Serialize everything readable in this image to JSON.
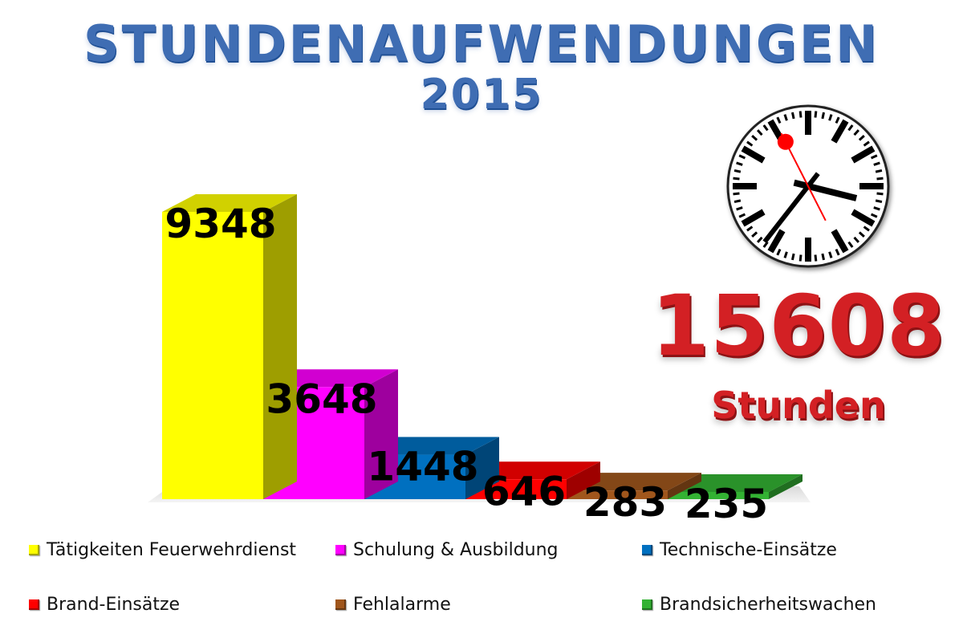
{
  "title": {
    "line1": "STUNDENAUFWENDUNGEN",
    "line2": "2015"
  },
  "total": {
    "value": "15608",
    "unit": "Stunden"
  },
  "chart_data": {
    "type": "bar",
    "categories": [
      "Tätigkeiten Feuerwehrdienst",
      "Schulung & Ausbildung",
      "Technische-Einsätze",
      "Brand-Einsätze",
      "Fehlalarme",
      "Brandsicherheitswachen"
    ],
    "values": [
      9348,
      3648,
      1448,
      646,
      283,
      235
    ],
    "colors": [
      "#ffff00",
      "#ff00ff",
      "#0070c0",
      "#ff0000",
      "#a0561c",
      "#33b233"
    ],
    "title": "STUNDENAUFWENDUNGEN 2015",
    "legend": "bottom",
    "grid": false
  },
  "icons": {
    "clock": "clock-icon"
  }
}
